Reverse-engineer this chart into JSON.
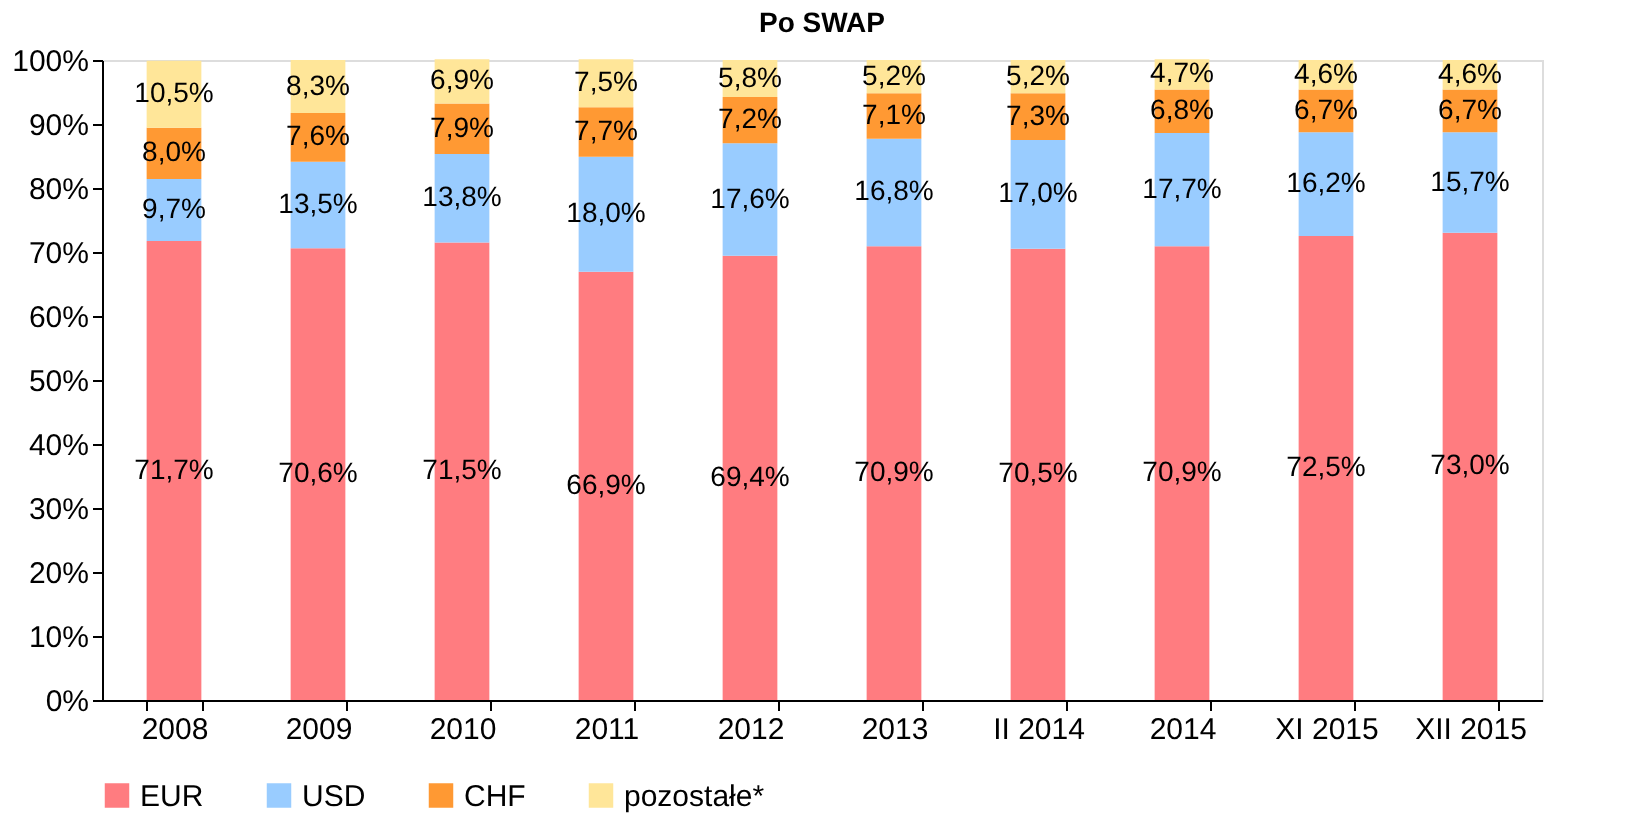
{
  "chart_data": {
    "type": "bar",
    "title": "Po SWAP",
    "stacked": true,
    "legend": "bottom",
    "grid": false,
    "categories": [
      "2008",
      "2009",
      "2010",
      "2011",
      "2012",
      "2013",
      "II 2014",
      "2014",
      "XI 2015",
      "XII 2015"
    ],
    "ylim": [
      0,
      100
    ],
    "yticks": [
      {
        "value": 0,
        "label": "0%"
      },
      {
        "value": 10,
        "label": "10%"
      },
      {
        "value": 20,
        "label": "20%"
      },
      {
        "value": 30,
        "label": "30%"
      },
      {
        "value": 40,
        "label": "40%"
      },
      {
        "value": 50,
        "label": "50%"
      },
      {
        "value": 60,
        "label": "60%"
      },
      {
        "value": 70,
        "label": "70%"
      },
      {
        "value": 80,
        "label": "80%"
      },
      {
        "value": 90,
        "label": "90%"
      },
      {
        "value": 100,
        "label": "100%"
      }
    ],
    "series": [
      {
        "name": "EUR",
        "color": "#ff7c80",
        "values": [
          71.7,
          70.6,
          71.5,
          66.9,
          69.4,
          70.9,
          70.5,
          70.9,
          72.5,
          73.0
        ],
        "value_labels": [
          "71,7%",
          "70,6%",
          "71,5%",
          "66,9%",
          "69,4%",
          "70,9%",
          "70,5%",
          "70,9%",
          "72,5%",
          "73,0%"
        ]
      },
      {
        "name": "USD",
        "color": "#99ccff",
        "values": [
          9.7,
          13.5,
          13.8,
          18.0,
          17.6,
          16.8,
          17.0,
          17.7,
          16.2,
          15.7
        ],
        "value_labels": [
          "9,7%",
          "13,5%",
          "13,8%",
          "18,0%",
          "17,6%",
          "16,8%",
          "17,0%",
          "17,7%",
          "16,2%",
          "15,7%"
        ]
      },
      {
        "name": "CHF",
        "color": "#ff9933",
        "values": [
          8.0,
          7.6,
          7.9,
          7.7,
          7.2,
          7.1,
          7.3,
          6.8,
          6.7,
          6.7
        ],
        "value_labels": [
          "8,0%",
          "7,6%",
          "7,9%",
          "7,7%",
          "7,2%",
          "7,1%",
          "7,3%",
          "6,8%",
          "6,7%",
          "6,7%"
        ]
      },
      {
        "name": "pozostałe*",
        "color": "#ffe699",
        "values": [
          10.5,
          8.3,
          6.9,
          7.5,
          5.8,
          5.2,
          5.2,
          4.7,
          4.6,
          4.6
        ],
        "value_labels": [
          "10,5%",
          "8,3%",
          "6,9%",
          "7,5%",
          "5,8%",
          "5,2%",
          "5,2%",
          "4,7%",
          "4,6%",
          "4,6%"
        ]
      }
    ]
  }
}
